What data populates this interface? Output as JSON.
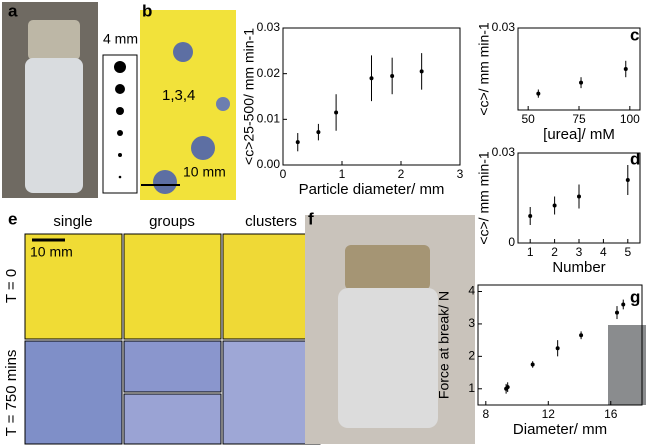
{
  "labels": {
    "a": "a",
    "b": "b",
    "c": "c",
    "d": "d",
    "e": "e",
    "f": "f",
    "g": "g",
    "scale_a": "4 mm",
    "b_note": "1,3,4",
    "scale_b": "10 mm",
    "single": "single",
    "groups": "groups",
    "clusters": "clusters",
    "t0": "T = 0",
    "t750": "T = 750 mins",
    "scale_e": "10 mm"
  },
  "chart_data": [
    {
      "type": "scatter",
      "xlabel": "Particle diameter/ mm",
      "ylabel": "<c>25-500/ mm min-1",
      "color": "#000000",
      "x": [
        0.25,
        0.6,
        0.9,
        1.5,
        1.85,
        2.35
      ],
      "values": [
        0.005,
        0.0072,
        0.0115,
        0.019,
        0.0195,
        0.0205
      ],
      "errors": [
        0.002,
        0.0018,
        0.004,
        0.005,
        0.004,
        0.004
      ],
      "xlim": [
        0,
        3
      ],
      "xticks": [
        0,
        1,
        2,
        3
      ],
      "ylim": [
        0,
        0.03
      ],
      "yticks": [
        {
          "value": 0,
          "label": "0.00"
        },
        {
          "value": 0.01,
          "label": "0.01"
        },
        {
          "value": 0.02,
          "label": "0.02"
        },
        {
          "value": 0.03,
          "label": "0.03"
        }
      ]
    },
    {
      "type": "scatter",
      "xlabel": "[urea]/ mM",
      "ylabel": "<c>/ mm min-1",
      "color": "#000000",
      "x": [
        55,
        76,
        98
      ],
      "values": [
        0.006,
        0.01,
        0.015
      ],
      "errors": [
        0.0015,
        0.002,
        0.003
      ],
      "xlim": [
        45,
        105
      ],
      "xticks": [
        50,
        75,
        100
      ],
      "ylim": [
        0,
        0.03
      ],
      "yticks": [
        {
          "value": 0.03,
          "label": "0.03"
        }
      ]
    },
    {
      "type": "scatter",
      "xlabel": "Number",
      "ylabel": "<c>/ mm min-1",
      "color": "#000000",
      "x": [
        1,
        2,
        3,
        5
      ],
      "values": [
        0.009,
        0.0125,
        0.0155,
        0.021
      ],
      "errors": [
        0.003,
        0.003,
        0.004,
        0.005
      ],
      "xlim": [
        0.5,
        5.5
      ],
      "xticks": [
        1,
        2,
        3,
        4,
        5
      ],
      "ylim": [
        0,
        0.03
      ],
      "yticks": [
        0,
        {
          "value": 0.03,
          "label": "0.03"
        }
      ]
    },
    {
      "type": "scatter",
      "xlabel": "Diameter/ mm",
      "ylabel": "Force at break/ N",
      "color": "#000000",
      "x": [
        9.3,
        9.4,
        11,
        12.6,
        14.1,
        16.4,
        16.8
      ],
      "values": [
        1.0,
        1.05,
        1.75,
        2.25,
        2.65,
        3.35,
        3.6
      ],
      "errors": [
        0.15,
        0.15,
        0.1,
        0.25,
        0.12,
        0.2,
        0.15
      ],
      "xlim": [
        7.5,
        18
      ],
      "xticks": [
        8,
        12,
        16
      ],
      "ylim": [
        0.5,
        4.2
      ],
      "yticks": [
        1,
        2,
        3,
        4
      ]
    }
  ]
}
